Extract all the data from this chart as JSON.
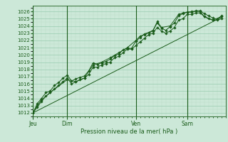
{
  "background_color": "#cce8d8",
  "grid_color_major": "#99ccb0",
  "grid_color_minor": "#bbddc8",
  "line_color": "#1a5c1a",
  "ylim": [
    1011.5,
    1026.8
  ],
  "yticks": [
    1012,
    1013,
    1014,
    1015,
    1016,
    1017,
    1018,
    1019,
    1020,
    1021,
    1022,
    1023,
    1024,
    1025,
    1026
  ],
  "xlabel": "Pression niveau de la mer( hPa )",
  "day_labels": [
    "Jeu",
    "Dim",
    "Ven",
    "Sam"
  ],
  "day_positions": [
    0,
    48,
    144,
    216
  ],
  "total_hours": 270,
  "series1": [
    [
      0,
      1012
    ],
    [
      6,
      1013.3
    ],
    [
      12,
      1014.0
    ],
    [
      18,
      1014.8
    ],
    [
      24,
      1015.0
    ],
    [
      30,
      1015.8
    ],
    [
      36,
      1016.2
    ],
    [
      42,
      1016.8
    ],
    [
      48,
      1017.2
    ],
    [
      54,
      1016.4
    ],
    [
      60,
      1016.7
    ],
    [
      66,
      1016.9
    ],
    [
      72,
      1017.1
    ],
    [
      78,
      1017.8
    ],
    [
      84,
      1018.9
    ],
    [
      90,
      1018.7
    ],
    [
      96,
      1018.9
    ],
    [
      102,
      1019.1
    ],
    [
      108,
      1019.4
    ],
    [
      114,
      1019.9
    ],
    [
      120,
      1020.1
    ],
    [
      126,
      1020.7
    ],
    [
      132,
      1020.9
    ],
    [
      138,
      1020.9
    ],
    [
      144,
      1021.9
    ],
    [
      150,
      1022.4
    ],
    [
      156,
      1022.9
    ],
    [
      162,
      1023.1
    ],
    [
      168,
      1023.4
    ],
    [
      174,
      1024.4
    ],
    [
      180,
      1023.7
    ],
    [
      186,
      1023.4
    ],
    [
      192,
      1023.9
    ],
    [
      198,
      1024.4
    ],
    [
      204,
      1025.4
    ],
    [
      210,
      1025.7
    ],
    [
      216,
      1025.9
    ],
    [
      222,
      1025.9
    ],
    [
      228,
      1026.1
    ],
    [
      234,
      1026.1
    ],
    [
      240,
      1025.7
    ],
    [
      246,
      1025.4
    ],
    [
      252,
      1025.1
    ],
    [
      258,
      1024.9
    ],
    [
      264,
      1025.4
    ]
  ],
  "series2": [
    [
      0,
      1012
    ],
    [
      6,
      1012.8
    ],
    [
      12,
      1013.6
    ],
    [
      18,
      1014.3
    ],
    [
      24,
      1014.8
    ],
    [
      30,
      1015.3
    ],
    [
      36,
      1015.8
    ],
    [
      42,
      1016.3
    ],
    [
      48,
      1016.8
    ],
    [
      54,
      1016.0
    ],
    [
      60,
      1016.3
    ],
    [
      66,
      1016.6
    ],
    [
      72,
      1016.8
    ],
    [
      78,
      1017.3
    ],
    [
      84,
      1018.3
    ],
    [
      90,
      1018.3
    ],
    [
      96,
      1018.6
    ],
    [
      102,
      1018.8
    ],
    [
      108,
      1019.0
    ],
    [
      114,
      1019.6
    ],
    [
      120,
      1019.8
    ],
    [
      126,
      1020.3
    ],
    [
      132,
      1020.8
    ],
    [
      138,
      1020.8
    ],
    [
      144,
      1021.3
    ],
    [
      150,
      1021.8
    ],
    [
      156,
      1022.3
    ],
    [
      162,
      1022.8
    ],
    [
      168,
      1023.0
    ],
    [
      174,
      1023.8
    ],
    [
      180,
      1023.3
    ],
    [
      186,
      1023.0
    ],
    [
      192,
      1023.3
    ],
    [
      198,
      1023.8
    ],
    [
      204,
      1024.8
    ],
    [
      210,
      1025.0
    ],
    [
      216,
      1025.6
    ],
    [
      222,
      1025.6
    ],
    [
      228,
      1025.8
    ],
    [
      234,
      1025.8
    ],
    [
      240,
      1025.3
    ],
    [
      246,
      1025.0
    ],
    [
      252,
      1024.8
    ],
    [
      258,
      1024.8
    ],
    [
      264,
      1025.0
    ]
  ],
  "series_trend": [
    [
      0,
      1012
    ],
    [
      264,
      1025.2
    ]
  ],
  "series3": [
    [
      0,
      1012
    ],
    [
      6,
      1013.0
    ],
    [
      12,
      1013.8
    ],
    [
      24,
      1014.8
    ],
    [
      48,
      1016.6
    ],
    [
      60,
      1016.3
    ],
    [
      72,
      1016.8
    ],
    [
      84,
      1018.6
    ],
    [
      96,
      1019.0
    ],
    [
      108,
      1019.6
    ],
    [
      120,
      1020.3
    ],
    [
      132,
      1021.0
    ],
    [
      144,
      1022.0
    ],
    [
      150,
      1022.6
    ],
    [
      156,
      1022.8
    ],
    [
      168,
      1023.3
    ],
    [
      174,
      1024.6
    ],
    [
      180,
      1023.8
    ],
    [
      192,
      1024.0
    ],
    [
      204,
      1025.6
    ],
    [
      210,
      1025.8
    ],
    [
      216,
      1025.9
    ],
    [
      222,
      1026.0
    ],
    [
      234,
      1026.0
    ],
    [
      240,
      1025.3
    ],
    [
      252,
      1024.8
    ],
    [
      264,
      1025.3
    ]
  ]
}
